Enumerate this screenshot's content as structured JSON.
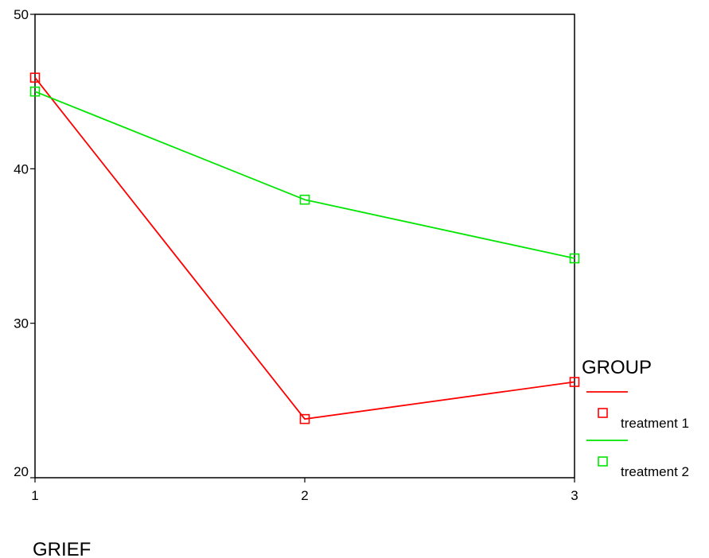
{
  "chart_data": {
    "type": "line",
    "x": [
      1,
      2,
      3
    ],
    "x_tick_labels": [
      "1",
      "2",
      "3"
    ],
    "y_tick_labels": [
      "20",
      "30",
      "40",
      "50"
    ],
    "ylim": [
      20,
      50
    ],
    "xlim": [
      1,
      3
    ],
    "xlabel": "GRIEF",
    "grid": false,
    "legend": {
      "title": "GROUP",
      "placement": "right"
    },
    "series": [
      {
        "name": "treatment 1",
        "color": "#ff0000",
        "marker": "square",
        "values": [
          45.9,
          23.8,
          26.2
        ]
      },
      {
        "name": "treatment 2",
        "color": "#00e600",
        "marker": "square",
        "values": [
          45.0,
          38.0,
          34.2
        ]
      }
    ]
  }
}
